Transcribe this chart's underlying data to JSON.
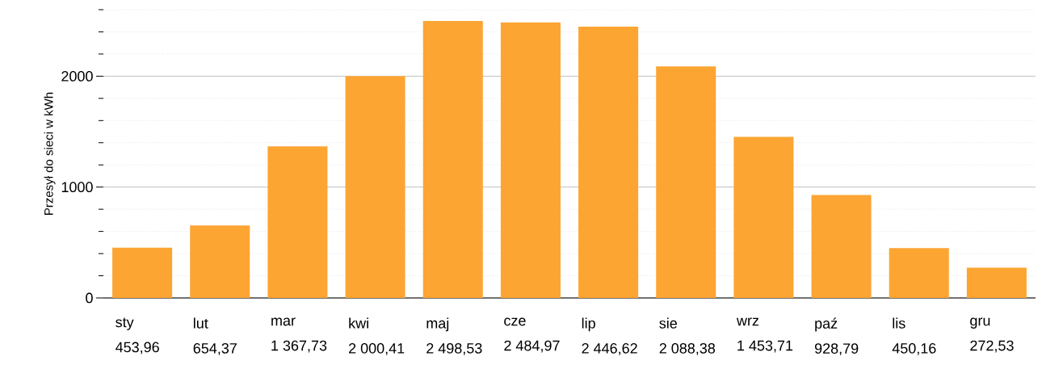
{
  "chart_data": {
    "type": "bar",
    "ylabel": "Przesył do sieci w kWh",
    "categories": [
      "sty",
      "lut",
      "mar",
      "kwi",
      "maj",
      "cze",
      "lip",
      "sie",
      "wrz",
      "paź",
      "lis",
      "gru"
    ],
    "values": [
      453.96,
      654.37,
      1367.73,
      2000.41,
      2498.53,
      2484.97,
      2446.62,
      2088.38,
      1453.71,
      928.79,
      450.16,
      272.53
    ],
    "value_labels": [
      "453,96",
      "654,37",
      "1 367,73",
      "2 000,41",
      "2 498,53",
      "2 484,97",
      "2 446,62",
      "2 088,38",
      "1 453,71",
      "928,79",
      "450,16",
      "272,53"
    ],
    "color": "#fca533",
    "ylim": [
      0,
      2600
    ],
    "yticks": [
      0,
      {
        "value": 200,
        "label": null
      },
      {
        "value": 400,
        "label": null
      },
      {
        "value": 600,
        "label": null
      },
      {
        "value": 800,
        "label": null
      },
      1000,
      {
        "value": 1200,
        "label": null
      },
      {
        "value": 1400,
        "label": null
      },
      {
        "value": 1600,
        "label": null
      },
      {
        "value": 1800,
        "label": null
      },
      2000,
      {
        "value": 2200,
        "label": null
      },
      {
        "value": 2400,
        "label": null
      },
      {
        "value": 2600,
        "label": null
      }
    ],
    "grid": "y"
  }
}
